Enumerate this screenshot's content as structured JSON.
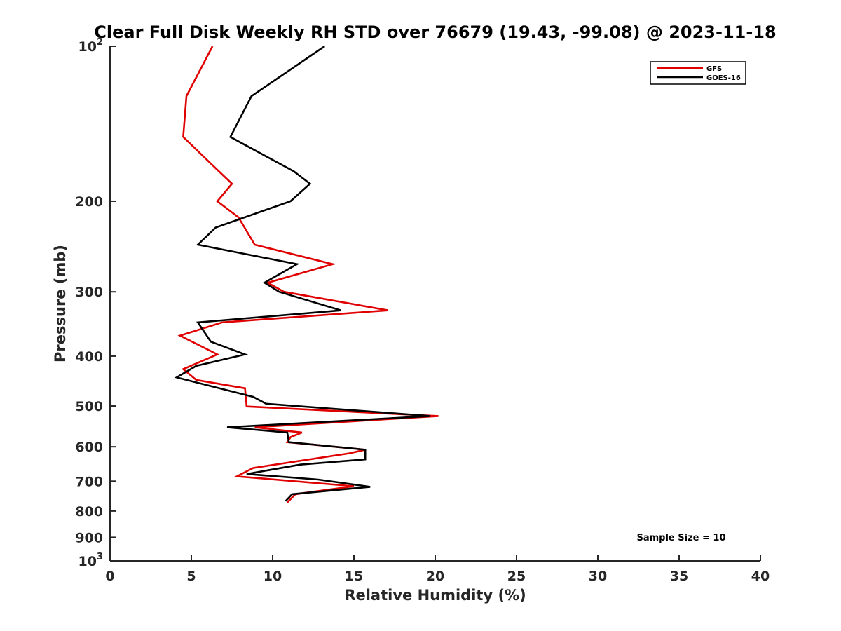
{
  "chart_data": {
    "type": "line",
    "title": "Clear Full Disk Weekly RH STD over 76679 (19.43, -99.08) @ 2023-11-18",
    "xlabel": "Relative Humidity (%)",
    "ylabel": "Pressure (mb)",
    "xlim": [
      0,
      40
    ],
    "ylim": [
      100,
      1000
    ],
    "y_scale": "log",
    "y_reversed": true,
    "x_ticks": [
      "0",
      "5",
      "10",
      "15",
      "20",
      "25",
      "30",
      "35",
      "40"
    ],
    "y_ticks": [
      {
        "value": 100,
        "base": "10",
        "sup": "2"
      },
      {
        "value": 200,
        "base": "200",
        "sup": ""
      },
      {
        "value": 300,
        "base": "300",
        "sup": ""
      },
      {
        "value": 400,
        "base": "400",
        "sup": ""
      },
      {
        "value": 500,
        "base": "500",
        "sup": ""
      },
      {
        "value": 600,
        "base": "600",
        "sup": ""
      },
      {
        "value": 700,
        "base": "700",
        "sup": ""
      },
      {
        "value": 800,
        "base": "800",
        "sup": ""
      },
      {
        "value": 900,
        "base": "900",
        "sup": ""
      },
      {
        "value": 1000,
        "base": "10",
        "sup": "3"
      }
    ],
    "grid": false,
    "legend_position": "top-right",
    "annotation": "Sample Size = 10",
    "series": [
      {
        "name": "GFS",
        "color": "#e00000",
        "points": [
          [
            6.3,
            100
          ],
          [
            4.7,
            125
          ],
          [
            4.5,
            150
          ],
          [
            6.7,
            175
          ],
          [
            7.5,
            185
          ],
          [
            6.6,
            200
          ],
          [
            7.9,
            215
          ],
          [
            8.9,
            243
          ],
          [
            13.7,
            265
          ],
          [
            9.7,
            288
          ],
          [
            10.7,
            300
          ],
          [
            17.1,
            326
          ],
          [
            6.9,
            344
          ],
          [
            4.3,
            365
          ],
          [
            6.6,
            397
          ],
          [
            4.5,
            424
          ],
          [
            5.3,
            445
          ],
          [
            8.3,
            462
          ],
          [
            8.4,
            501
          ],
          [
            20.2,
            523
          ],
          [
            8.9,
            550
          ],
          [
            11.8,
            563
          ],
          [
            11.1,
            575
          ],
          [
            10.9,
            588
          ],
          [
            15.7,
            608
          ],
          [
            14.7,
            618
          ],
          [
            8.8,
            660
          ],
          [
            7.8,
            685
          ],
          [
            15.0,
            716
          ],
          [
            11.4,
            742
          ],
          [
            10.9,
            770
          ]
        ]
      },
      {
        "name": "GOES-16",
        "color": "#000000",
        "points": [
          [
            13.2,
            100
          ],
          [
            8.7,
            125
          ],
          [
            7.4,
            150
          ],
          [
            11.3,
            175
          ],
          [
            12.3,
            185
          ],
          [
            11.1,
            200
          ],
          [
            6.5,
            225
          ],
          [
            5.4,
            243
          ],
          [
            11.5,
            265
          ],
          [
            9.5,
            288
          ],
          [
            10.4,
            300
          ],
          [
            14.2,
            326
          ],
          [
            5.4,
            344
          ],
          [
            6.2,
            375
          ],
          [
            8.3,
            397
          ],
          [
            5.3,
            418
          ],
          [
            4.1,
            440
          ],
          [
            8.8,
            480
          ],
          [
            9.6,
            495
          ],
          [
            19.7,
            523
          ],
          [
            7.2,
            550
          ],
          [
            10.9,
            563
          ],
          [
            11.0,
            588
          ],
          [
            15.7,
            608
          ],
          [
            15.7,
            635
          ],
          [
            11.7,
            650
          ],
          [
            8.4,
            678
          ],
          [
            12.8,
            695
          ],
          [
            16.0,
            718
          ],
          [
            11.2,
            742
          ],
          [
            10.8,
            765
          ]
        ]
      }
    ]
  }
}
